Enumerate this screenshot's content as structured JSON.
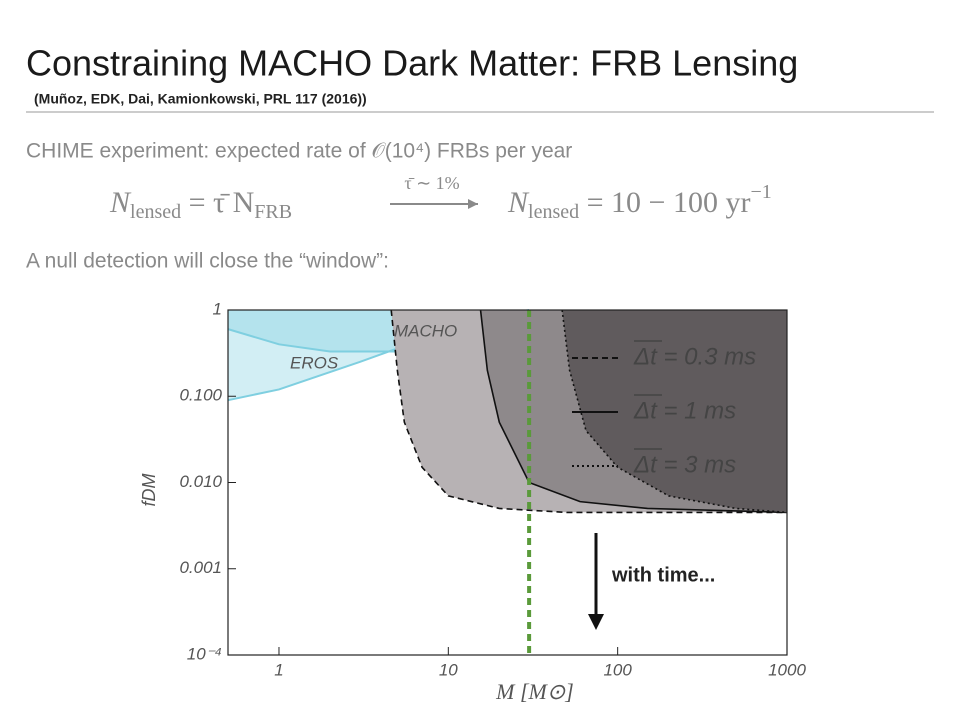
{
  "slide": {
    "title": "Constraining MACHO Dark Matter: FRB Lensing",
    "citation": "(Muñoz, EDK, Dai, Kamionkowski, PRL 117 (2016))",
    "line1": "CHIME experiment: expected rate of 𝒪(10⁴) FRBs per year",
    "equation_left": [
      "N",
      "lensed",
      " = τ̄ N",
      "FRB"
    ],
    "arrow_label": "τ̄ ∼ 1%",
    "equation_right": [
      "N",
      "lensed",
      " = 10 − 100 yr",
      "−1"
    ],
    "line2": "A null detection will close the “window”:"
  },
  "chart_data": {
    "type": "line",
    "x_label": "M  [M⊙]",
    "y_label": "fDM",
    "xscale": "log",
    "yscale": "log",
    "xlim": [
      0.5,
      1000
    ],
    "ylim": [
      0.0001,
      1
    ],
    "xticks": [
      1,
      10,
      100,
      1000
    ],
    "yticks": [
      1,
      {
        "value": 0.1,
        "label": "0.100"
      },
      {
        "value": 0.01,
        "label": "0.010"
      },
      0.001,
      {
        "value": 0.0001,
        "label": "10⁻⁴"
      }
    ],
    "series": [
      {
        "name": "EROS",
        "color": "#7fcfe0",
        "dash": "solid",
        "x": [
          0.5,
          1,
          3,
          8,
          15,
          30
        ],
        "values": [
          0.09,
          0.12,
          0.25,
          0.5,
          0.8,
          1
        ]
      },
      {
        "name": "MACHO",
        "color": "#7fcfe0",
        "dash": "solid",
        "x": [
          0.5,
          1,
          2,
          5,
          10,
          20,
          30
        ],
        "values": [
          0.6,
          0.4,
          0.33,
          0.33,
          0.45,
          0.7,
          1
        ]
      },
      {
        "name": "Δt = 0.3 ms",
        "color": "#b7b2b4",
        "dash": "dashed",
        "x": [
          4.6,
          5,
          5.5,
          7,
          10,
          20,
          50,
          1000
        ],
        "values": [
          1,
          0.2,
          0.05,
          0.015,
          0.007,
          0.005,
          0.0045,
          0.0045
        ]
      },
      {
        "name": "Δt = 1 ms",
        "color": "#8e898b",
        "dash": "solid",
        "x": [
          15.5,
          17,
          20,
          30,
          60,
          150,
          1000
        ],
        "values": [
          1,
          0.2,
          0.05,
          0.01,
          0.006,
          0.005,
          0.0045
        ]
      },
      {
        "name": "Δt = 3 ms",
        "color": "#605b5d",
        "dash": "dotted",
        "x": [
          47,
          52,
          65,
          100,
          200,
          500,
          1000
        ],
        "values": [
          1,
          0.2,
          0.04,
          0.015,
          0.007,
          0.005,
          0.0045
        ]
      }
    ],
    "vline_x": 30,
    "vline_color": "#5a9a3a",
    "annotation": "with time..."
  }
}
